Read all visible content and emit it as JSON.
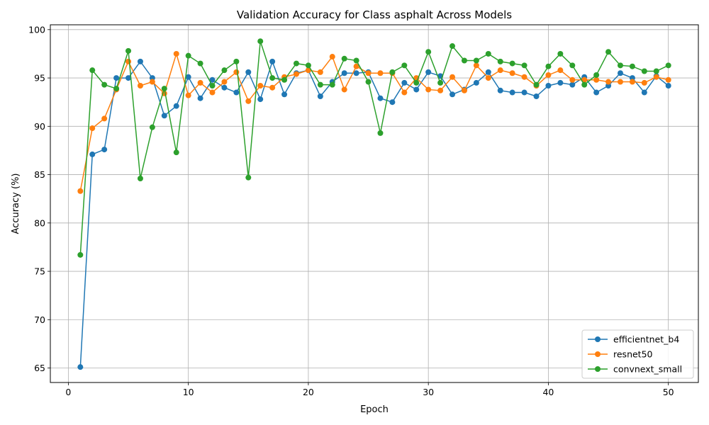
{
  "chart_data": {
    "type": "line",
    "title": "Validation Accuracy for Class asphalt Across Models",
    "xlabel": "Epoch",
    "ylabel": "Accuracy (%)",
    "xlim": [
      -1.5,
      52.5
    ],
    "ylim": [
      63.5,
      100.5
    ],
    "xticks": [
      0,
      10,
      20,
      30,
      40,
      50
    ],
    "yticks": [
      65,
      70,
      75,
      80,
      85,
      90,
      95,
      100
    ],
    "grid": true,
    "legend_position": "lower-right",
    "x": [
      1,
      2,
      3,
      4,
      5,
      6,
      7,
      8,
      9,
      10,
      11,
      12,
      13,
      14,
      15,
      16,
      17,
      18,
      19,
      20,
      21,
      22,
      23,
      24,
      25,
      26,
      27,
      28,
      29,
      30,
      31,
      32,
      33,
      34,
      35,
      36,
      37,
      38,
      39,
      40,
      41,
      42,
      43,
      44,
      45,
      46,
      47,
      48,
      49,
      50
    ],
    "series": [
      {
        "name": "efficientnet_b4",
        "color": "#1f77b4",
        "values": [
          65.1,
          87.1,
          87.6,
          95.0,
          95.0,
          96.7,
          95.0,
          91.1,
          92.1,
          95.1,
          92.9,
          94.8,
          94.0,
          93.5,
          95.6,
          92.8,
          96.7,
          93.3,
          95.5,
          95.8,
          93.1,
          94.6,
          95.5,
          95.5,
          95.6,
          92.9,
          92.5,
          94.5,
          93.8,
          95.6,
          95.2,
          93.3,
          93.8,
          94.5,
          95.6,
          93.7,
          93.5,
          93.5,
          93.1,
          94.2,
          94.5,
          94.3,
          95.1,
          93.5,
          94.2,
          95.5,
          95.0,
          93.5,
          95.2,
          94.2
        ]
      },
      {
        "name": "resnet50",
        "color": "#ff7f0e",
        "values": [
          83.3,
          89.8,
          90.8,
          93.8,
          96.7,
          94.2,
          94.6,
          93.4,
          97.5,
          93.2,
          94.5,
          93.5,
          94.6,
          95.6,
          92.6,
          94.2,
          94.0,
          95.1,
          95.4,
          95.8,
          95.6,
          97.2,
          93.8,
          96.2,
          95.5,
          95.5,
          95.5,
          93.5,
          95.0,
          93.8,
          93.7,
          95.1,
          93.7,
          96.3,
          95.0,
          95.8,
          95.5,
          95.1,
          94.2,
          95.3,
          95.8,
          94.8,
          94.8,
          94.8,
          94.6,
          94.6,
          94.6,
          94.5,
          95.1,
          94.8
        ]
      },
      {
        "name": "convnext_small",
        "color": "#2ca02c",
        "values": [
          76.7,
          95.8,
          94.3,
          93.9,
          97.8,
          84.6,
          89.9,
          93.9,
          87.3,
          97.3,
          96.5,
          94.2,
          95.8,
          96.7,
          84.7,
          98.8,
          95.0,
          94.8,
          96.5,
          96.3,
          94.3,
          94.3,
          97.0,
          96.8,
          94.6,
          89.3,
          95.6,
          96.3,
          94.5,
          97.7,
          94.5,
          98.3,
          96.8,
          96.8,
          97.5,
          96.7,
          96.5,
          96.3,
          94.3,
          96.2,
          97.5,
          96.3,
          94.3,
          95.3,
          97.7,
          96.3,
          96.2,
          95.7,
          95.7,
          96.3
        ]
      }
    ]
  }
}
